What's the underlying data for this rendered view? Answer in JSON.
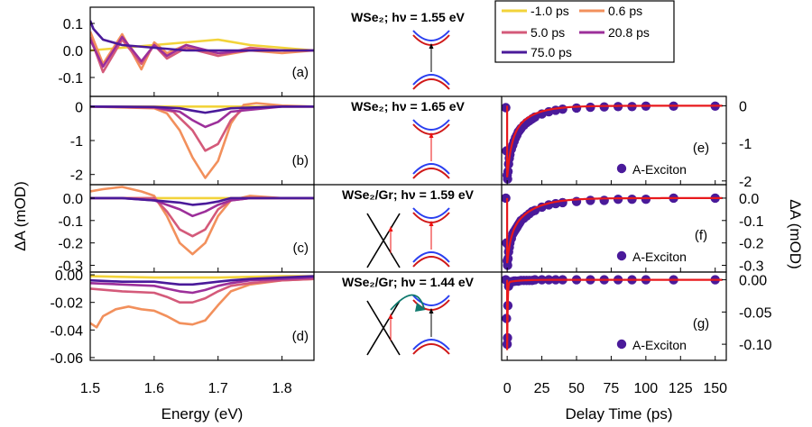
{
  "figure": {
    "y_label_left": "ΔA (mOD)",
    "y_label_right": "ΔA (mOD)",
    "x_label_left": "Energy (eV)",
    "x_label_right": "Delay Time (ps)"
  },
  "legend": [
    {
      "label": "-1.0 ps",
      "color": "#f2d33a"
    },
    {
      "label": "0.6 ps",
      "color": "#f2905c"
    },
    {
      "label": "5.0 ps",
      "color": "#d45a7a"
    },
    {
      "label": "20.8 ps",
      "color": "#9c2f9a"
    },
    {
      "label": "75.0 ps",
      "color": "#4a1a9a"
    }
  ],
  "diagrams": [
    {
      "title": "WSe₂; hν = 1.55 eV",
      "graphene": false,
      "arrow": "black"
    },
    {
      "title": "WSe₂; hν = 1.65 eV",
      "graphene": false,
      "arrow": "red"
    },
    {
      "title": "WSe₂/Gr; hν = 1.59 eV",
      "graphene": true,
      "arrow": "red"
    },
    {
      "title": "WSe₂/Gr; hν = 1.44 eV",
      "graphene": true,
      "arrow": "black"
    }
  ],
  "chart_data": [
    {
      "type": "line",
      "panel": "(a)",
      "xlim": [
        1.5,
        1.85
      ],
      "ylim": [
        -0.17,
        0.16
      ],
      "yticks": [
        0.1,
        0.0,
        -0.1
      ],
      "ytick_labels": [
        "0.1",
        "0.0",
        "-0.1"
      ],
      "xticks": [
        1.5,
        1.6,
        1.7,
        1.8
      ],
      "xtick_labels": [
        "1.5",
        "1.6",
        "1.7",
        "1.8"
      ],
      "xlabel": "Energy (eV)",
      "series": [
        {
          "name": "-1.0 ps",
          "color": "#f2d33a",
          "x": [
            1.5,
            1.55,
            1.6,
            1.65,
            1.7,
            1.75,
            1.8,
            1.85
          ],
          "y": [
            0.0,
            0.01,
            0.02,
            0.03,
            0.04,
            0.02,
            0.01,
            0.0
          ]
        },
        {
          "name": "0.6 ps",
          "color": "#f2905c",
          "x": [
            1.5,
            1.52,
            1.55,
            1.58,
            1.6,
            1.62,
            1.65,
            1.7,
            1.75,
            1.8,
            1.85
          ],
          "y": [
            0.07,
            -0.05,
            0.06,
            -0.07,
            0.03,
            -0.01,
            0.02,
            -0.02,
            0.0,
            -0.01,
            0.0
          ]
        },
        {
          "name": "5.0 ps",
          "color": "#d45a7a",
          "x": [
            1.5,
            1.52,
            1.55,
            1.58,
            1.6,
            1.62,
            1.65,
            1.7,
            1.75,
            1.8,
            1.85
          ],
          "y": [
            0.05,
            -0.08,
            0.04,
            -0.05,
            0.02,
            -0.03,
            0.01,
            -0.02,
            0.01,
            0.0,
            0.0
          ]
        },
        {
          "name": "20.8 ps",
          "color": "#9c2f9a",
          "x": [
            1.5,
            1.52,
            1.55,
            1.58,
            1.6,
            1.62,
            1.65,
            1.7,
            1.75,
            1.8,
            1.85
          ],
          "y": [
            0.04,
            -0.06,
            0.05,
            -0.04,
            0.02,
            -0.02,
            0.02,
            -0.01,
            0.0,
            0.0,
            0.0
          ]
        },
        {
          "name": "75.0 ps",
          "color": "#4a1a9a",
          "x": [
            1.5,
            1.505,
            1.52,
            1.55,
            1.6,
            1.65,
            1.7,
            1.75,
            1.8,
            1.85
          ],
          "y": [
            0.11,
            0.08,
            0.04,
            0.02,
            0.01,
            0.0,
            0.0,
            0.0,
            0.0,
            0.0
          ]
        }
      ]
    },
    {
      "type": "line",
      "panel": "(b)",
      "xlim": [
        1.5,
        1.85
      ],
      "ylim": [
        -2.3,
        0.3
      ],
      "yticks": [
        0,
        -1,
        -2
      ],
      "ytick_labels": [
        "0",
        "-1",
        "-2"
      ],
      "xticks": [
        1.5,
        1.6,
        1.7,
        1.8
      ],
      "xtick_labels": [
        "1.5",
        "1.6",
        "1.7",
        "1.8"
      ],
      "xlabel": "Energy (eV)",
      "series": [
        {
          "name": "-1.0 ps",
          "color": "#f2d33a",
          "x": [
            1.5,
            1.6,
            1.7,
            1.8,
            1.85
          ],
          "y": [
            0,
            0,
            0,
            0,
            0
          ]
        },
        {
          "name": "0.6 ps",
          "color": "#f2905c",
          "x": [
            1.5,
            1.6,
            1.62,
            1.64,
            1.66,
            1.68,
            1.7,
            1.72,
            1.74,
            1.76,
            1.8,
            1.85
          ],
          "y": [
            0.0,
            -0.05,
            -0.2,
            -0.7,
            -1.5,
            -2.1,
            -1.6,
            -0.5,
            0.05,
            0.1,
            0.03,
            0.0
          ]
        },
        {
          "name": "5.0 ps",
          "color": "#d45a7a",
          "x": [
            1.5,
            1.6,
            1.63,
            1.66,
            1.68,
            1.7,
            1.72,
            1.74,
            1.8,
            1.85
          ],
          "y": [
            0.0,
            -0.03,
            -0.15,
            -0.7,
            -1.3,
            -1.1,
            -0.4,
            -0.05,
            0.0,
            0.0
          ]
        },
        {
          "name": "20.8 ps",
          "color": "#9c2f9a",
          "x": [
            1.5,
            1.6,
            1.64,
            1.66,
            1.68,
            1.7,
            1.72,
            1.8,
            1.85
          ],
          "y": [
            0.0,
            -0.02,
            -0.15,
            -0.4,
            -0.6,
            -0.45,
            -0.15,
            0.0,
            0.0
          ]
        },
        {
          "name": "75.0 ps",
          "color": "#4a1a9a",
          "x": [
            1.5,
            1.6,
            1.64,
            1.66,
            1.68,
            1.7,
            1.72,
            1.8,
            1.85
          ],
          "y": [
            0.0,
            -0.01,
            -0.05,
            -0.12,
            -0.18,
            -0.12,
            -0.05,
            0.0,
            0.0
          ]
        }
      ]
    },
    {
      "type": "line",
      "panel": "(c)",
      "xlim": [
        1.5,
        1.85
      ],
      "ylim": [
        -0.33,
        0.06
      ],
      "yticks": [
        0.0,
        -0.1,
        -0.2,
        -0.3
      ],
      "ytick_labels": [
        "0.0",
        "-0.1",
        "-0.2",
        "-0.3"
      ],
      "xticks": [
        1.5,
        1.6,
        1.7,
        1.8
      ],
      "xtick_labels": [
        "1.5",
        "1.6",
        "1.7",
        "1.8"
      ],
      "xlabel": "Energy (eV)",
      "series": [
        {
          "name": "-1.0 ps",
          "color": "#f2d33a",
          "x": [
            1.5,
            1.6,
            1.7,
            1.8,
            1.85
          ],
          "y": [
            0.0,
            0.0,
            0.0,
            0.0,
            0.0
          ]
        },
        {
          "name": "0.6 ps",
          "color": "#f2905c",
          "x": [
            1.5,
            1.52,
            1.55,
            1.58,
            1.6,
            1.62,
            1.64,
            1.66,
            1.68,
            1.7,
            1.72,
            1.75,
            1.8,
            1.85
          ],
          "y": [
            0.03,
            0.04,
            0.05,
            0.03,
            0.01,
            -0.08,
            -0.2,
            -0.25,
            -0.2,
            -0.08,
            -0.01,
            0.01,
            0.0,
            0.0
          ]
        },
        {
          "name": "5.0 ps",
          "color": "#d45a7a",
          "x": [
            1.5,
            1.55,
            1.6,
            1.62,
            1.64,
            1.66,
            1.68,
            1.7,
            1.72,
            1.75,
            1.8,
            1.85
          ],
          "y": [
            0.0,
            0.0,
            0.0,
            -0.06,
            -0.14,
            -0.17,
            -0.14,
            -0.05,
            -0.01,
            0.0,
            0.0,
            0.0
          ]
        },
        {
          "name": "20.8 ps",
          "color": "#9c2f9a",
          "x": [
            1.5,
            1.55,
            1.6,
            1.64,
            1.66,
            1.68,
            1.7,
            1.72,
            1.75,
            1.8,
            1.85
          ],
          "y": [
            0.0,
            0.0,
            -0.01,
            -0.05,
            -0.08,
            -0.06,
            -0.03,
            -0.01,
            0.0,
            0.0,
            0.0
          ]
        },
        {
          "name": "75.0 ps",
          "color": "#4a1a9a",
          "x": [
            1.5,
            1.55,
            1.6,
            1.64,
            1.66,
            1.68,
            1.7,
            1.72,
            1.75,
            1.8,
            1.85
          ],
          "y": [
            0.0,
            0.0,
            -0.01,
            -0.02,
            -0.03,
            -0.025,
            -0.015,
            0.0,
            0.0,
            0.0,
            0.0
          ]
        }
      ]
    },
    {
      "type": "line",
      "panel": "(d)",
      "xlim": [
        1.5,
        1.85
      ],
      "ylim": [
        -0.062,
        0.002
      ],
      "yticks": [
        0.0,
        -0.02,
        -0.04,
        -0.06
      ],
      "ytick_labels": [
        "0.00",
        "-0.02",
        "-0.04",
        "-0.06"
      ],
      "xticks": [
        1.5,
        1.6,
        1.7,
        1.8
      ],
      "xtick_labels": [
        "1.5",
        "1.6",
        "1.7",
        "1.8"
      ],
      "xlabel": "Energy (eV)",
      "series": [
        {
          "name": "-1.0 ps",
          "color": "#f2d33a",
          "x": [
            1.5,
            1.6,
            1.7,
            1.8,
            1.85
          ],
          "y": [
            -0.001,
            -0.002,
            -0.002,
            -0.001,
            -0.001
          ]
        },
        {
          "name": "0.6 ps",
          "color": "#f2905c",
          "x": [
            1.5,
            1.51,
            1.52,
            1.54,
            1.56,
            1.58,
            1.6,
            1.62,
            1.64,
            1.66,
            1.68,
            1.7,
            1.72,
            1.75,
            1.8,
            1.85
          ],
          "y": [
            -0.035,
            -0.038,
            -0.03,
            -0.025,
            -0.023,
            -0.025,
            -0.026,
            -0.03,
            -0.035,
            -0.036,
            -0.033,
            -0.022,
            -0.012,
            -0.007,
            -0.004,
            -0.003
          ]
        },
        {
          "name": "5.0 ps",
          "color": "#d45a7a",
          "x": [
            1.5,
            1.55,
            1.6,
            1.62,
            1.64,
            1.66,
            1.68,
            1.7,
            1.72,
            1.75,
            1.8,
            1.85
          ],
          "y": [
            -0.01,
            -0.012,
            -0.013,
            -0.016,
            -0.02,
            -0.02,
            -0.017,
            -0.012,
            -0.008,
            -0.006,
            -0.004,
            -0.003
          ]
        },
        {
          "name": "20.8 ps",
          "color": "#9c2f9a",
          "x": [
            1.5,
            1.55,
            1.6,
            1.62,
            1.64,
            1.66,
            1.68,
            1.7,
            1.72,
            1.75,
            1.8,
            1.85
          ],
          "y": [
            -0.006,
            -0.007,
            -0.008,
            -0.01,
            -0.012,
            -0.013,
            -0.011,
            -0.008,
            -0.006,
            -0.004,
            -0.003,
            -0.002
          ]
        },
        {
          "name": "75.0 ps",
          "color": "#4a1a9a",
          "x": [
            1.5,
            1.55,
            1.6,
            1.62,
            1.64,
            1.66,
            1.68,
            1.7,
            1.72,
            1.75,
            1.8,
            1.85
          ],
          "y": [
            -0.004,
            -0.005,
            -0.005,
            -0.006,
            -0.007,
            -0.007,
            -0.006,
            -0.005,
            -0.004,
            -0.003,
            -0.002,
            -0.001
          ]
        }
      ]
    },
    {
      "type": "scatter",
      "panel": "(e)",
      "xlim": [
        -4,
        158
      ],
      "ylim": [
        -2.1,
        0.25
      ],
      "yticks": [
        0,
        -1,
        -2
      ],
      "ytick_labels": [
        "0",
        "-1",
        "-2"
      ],
      "xticks": [
        0,
        25,
        50,
        75,
        100,
        125,
        150
      ],
      "xtick_labels": [
        "0",
        "25",
        "50",
        "75",
        "100",
        "125",
        "150"
      ],
      "xlabel": "Delay Time (ps)",
      "legend": "A-Exciton",
      "point_color": "#4a1a9a",
      "fit_color": "#e8191c",
      "points": {
        "x": [
          -1,
          -0.5,
          0,
          0.3,
          0.6,
          1,
          1.5,
          2,
          3,
          4,
          5,
          6,
          7,
          8,
          9,
          10,
          12,
          14,
          16,
          18,
          20,
          25,
          30,
          35,
          40,
          50,
          60,
          70,
          80,
          90,
          100,
          120,
          150
        ],
        "y": [
          -0.05,
          -1.2,
          -1.85,
          -1.95,
          -1.75,
          -1.55,
          -1.4,
          -1.3,
          -1.15,
          -1.05,
          -0.95,
          -0.85,
          -0.78,
          -0.7,
          -0.65,
          -0.6,
          -0.52,
          -0.45,
          -0.4,
          -0.35,
          -0.3,
          -0.22,
          -0.16,
          -0.12,
          -0.09,
          -0.06,
          -0.04,
          -0.03,
          -0.02,
          -0.02,
          -0.01,
          -0.01,
          -0.01
        ]
      },
      "fit": {
        "amp1": -1.0,
        "tau1": 3.0,
        "amp2": -0.9,
        "tau2": 14.0
      }
    },
    {
      "type": "scatter",
      "panel": "(f)",
      "xlim": [
        -4,
        158
      ],
      "ylim": [
        -0.33,
        0.06
      ],
      "yticks": [
        0.0,
        -0.1,
        -0.2,
        -0.3
      ],
      "ytick_labels": [
        "0.0",
        "-0.1",
        "-0.2",
        "-0.3"
      ],
      "xticks": [
        0,
        25,
        50,
        75,
        100,
        125,
        150
      ],
      "xtick_labels": [
        "0",
        "25",
        "50",
        "75",
        "100",
        "125",
        "150"
      ],
      "xlabel": "Delay Time (ps)",
      "legend": "A-Exciton",
      "point_color": "#4a1a9a",
      "fit_color": "#e8191c",
      "points": {
        "x": [
          -1,
          -0.5,
          0,
          0.3,
          0.6,
          1,
          1.5,
          2,
          3,
          4,
          5,
          6,
          7,
          8,
          9,
          10,
          12,
          14,
          16,
          18,
          20,
          25,
          30,
          35,
          40,
          50,
          60,
          70,
          80,
          90,
          100,
          120,
          150
        ],
        "y": [
          0.0,
          -0.2,
          -0.28,
          -0.3,
          -0.27,
          -0.24,
          -0.22,
          -0.2,
          -0.18,
          -0.16,
          -0.15,
          -0.14,
          -0.13,
          -0.12,
          -0.11,
          -0.1,
          -0.09,
          -0.08,
          -0.07,
          -0.06,
          -0.055,
          -0.04,
          -0.03,
          -0.025,
          -0.02,
          -0.015,
          -0.01,
          -0.01,
          -0.005,
          -0.005,
          -0.005,
          0.0,
          0.0
        ]
      },
      "fit": {
        "amp1": -0.12,
        "tau1": 2.5,
        "amp2": -0.17,
        "tau2": 15.0
      }
    },
    {
      "type": "scatter",
      "panel": "(g)",
      "xlim": [
        -4,
        158
      ],
      "ylim": [
        -0.125,
        0.012
      ],
      "yticks": [
        0.0,
        -0.05,
        -0.1
      ],
      "ytick_labels": [
        "0.00",
        "-0.05",
        "-0.10"
      ],
      "xticks": [
        0,
        25,
        50,
        75,
        100,
        125,
        150
      ],
      "xtick_labels": [
        "0",
        "25",
        "50",
        "75",
        "100",
        "125",
        "150"
      ],
      "xlabel": "Delay Time (ps)",
      "legend": "A-Exciton",
      "point_color": "#4a1a9a",
      "fit_color": "#e8191c",
      "points": {
        "x": [
          -1,
          -0.5,
          0,
          0.2,
          0.5,
          1,
          1.5,
          2,
          3,
          4,
          5,
          6,
          8,
          10,
          12,
          14,
          16,
          18,
          20,
          25,
          30,
          35,
          40,
          50,
          60,
          70,
          80,
          90,
          100,
          120,
          150
        ],
        "y": [
          0.0,
          -0.06,
          -0.1,
          -0.09,
          -0.04,
          -0.01,
          -0.005,
          -0.004,
          -0.003,
          -0.003,
          -0.002,
          -0.002,
          -0.002,
          -0.001,
          -0.001,
          -0.001,
          -0.001,
          -0.001,
          0.0,
          0.0,
          0.0,
          0.0,
          0.0,
          0.0,
          0.0,
          0.0,
          0.0,
          0.0,
          0.0,
          0.0,
          0.0
        ]
      },
      "fit": {
        "amp1": -0.105,
        "tau1": 0.35,
        "amp2": -0.004,
        "tau2": 8.0
      }
    }
  ]
}
